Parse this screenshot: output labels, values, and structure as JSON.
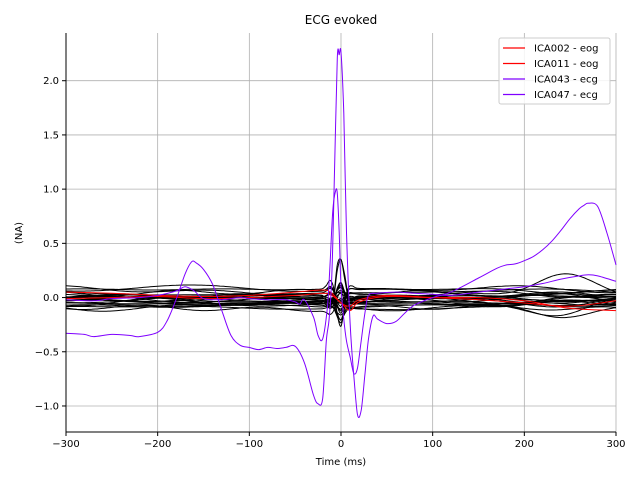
{
  "chart_data": {
    "type": "line",
    "title": "ECG evoked",
    "xlabel": "Time (ms)",
    "ylabel": "(NA)",
    "xlim": [
      -300,
      300
    ],
    "ylim": [
      -1.24,
      2.44
    ],
    "grid": true,
    "legend_position": "top-right",
    "xticks": [
      -300,
      -200,
      -100,
      0,
      100,
      200,
      300
    ],
    "yticks": [
      -1.0,
      -0.5,
      0.0,
      0.5,
      1.0,
      1.5,
      2.0
    ],
    "xtick_labels": [
      "−300",
      "−200",
      "−100",
      "0",
      "100",
      "200",
      "300"
    ],
    "ytick_labels": [
      "−1.0",
      "−0.5",
      "0.0",
      "0.5",
      "1.0",
      "1.5",
      "2.0"
    ],
    "legend": [
      {
        "label": "ICA002 - eog",
        "color": "#ff0000"
      },
      {
        "label": "ICA011 - eog",
        "color": "#ff0000"
      },
      {
        "label": "ICA043 - ecg",
        "color": "#7f00ff"
      },
      {
        "label": "ICA047 - ecg",
        "color": "#7f00ff"
      }
    ],
    "series": [
      {
        "name": "ICA002 - eog",
        "color": "#ff0000",
        "width": 1.0,
        "x": [
          -300,
          -250,
          -200,
          -150,
          -100,
          -50,
          -20,
          -10,
          0,
          10,
          20,
          50,
          100,
          150,
          200,
          250,
          300
        ],
        "y": [
          0.05,
          0.04,
          0.02,
          0.01,
          0.02,
          0.05,
          0.07,
          0.04,
          -0.05,
          -0.08,
          -0.02,
          0.02,
          0.0,
          -0.02,
          -0.05,
          -0.08,
          -0.03
        ]
      },
      {
        "name": "ICA011 - eog",
        "color": "#ff0000",
        "width": 1.0,
        "x": [
          -300,
          -250,
          -200,
          -150,
          -100,
          -50,
          -20,
          -10,
          0,
          10,
          20,
          50,
          100,
          150,
          200,
          250,
          300
        ],
        "y": [
          -0.01,
          0.0,
          0.01,
          -0.01,
          0.0,
          0.02,
          0.04,
          0.02,
          -0.05,
          -0.12,
          -0.04,
          0.01,
          0.0,
          0.0,
          -0.03,
          -0.1,
          -0.12
        ]
      },
      {
        "name": "ICA043 - ecg",
        "color": "#7f00ff",
        "width": 1.0,
        "x": [
          -300,
          -280,
          -270,
          -250,
          -230,
          -220,
          -200,
          -190,
          -180,
          -170,
          -163,
          -158,
          -150,
          -140,
          -130,
          -120,
          -110,
          -100,
          -90,
          -80,
          -70,
          -60,
          -50,
          -40,
          -30,
          -25,
          -20,
          -16,
          -13,
          -10,
          -7,
          -4,
          -2,
          0,
          3,
          6,
          10,
          14,
          18,
          22,
          26,
          30,
          35,
          40,
          50,
          60,
          70,
          80,
          100,
          120,
          150,
          170,
          180,
          190,
          200,
          210,
          220,
          230,
          240,
          250,
          260,
          265,
          270,
          280,
          290,
          300
        ],
        "y": [
          -0.33,
          -0.34,
          -0.36,
          -0.34,
          -0.35,
          -0.36,
          -0.32,
          -0.22,
          -0.02,
          0.22,
          0.33,
          0.32,
          0.26,
          0.12,
          -0.12,
          -0.35,
          -0.44,
          -0.46,
          -0.48,
          -0.46,
          -0.47,
          -0.46,
          -0.45,
          -0.6,
          -0.9,
          -0.98,
          -0.93,
          -0.4,
          -0.2,
          0.2,
          1.2,
          2.21,
          2.24,
          2.26,
          1.7,
          0.6,
          -0.25,
          -0.72,
          -1.08,
          -1.04,
          -0.72,
          -0.38,
          -0.17,
          -0.2,
          -0.24,
          -0.22,
          -0.14,
          -0.07,
          0.0,
          0.05,
          0.18,
          0.27,
          0.3,
          0.31,
          0.34,
          0.38,
          0.44,
          0.52,
          0.62,
          0.73,
          0.82,
          0.85,
          0.87,
          0.84,
          0.6,
          0.3
        ]
      },
      {
        "name": "ICA047 - ecg",
        "color": "#7f00ff",
        "width": 1.0,
        "x": [
          -300,
          -270,
          -250,
          -220,
          -200,
          -180,
          -170,
          -160,
          -150,
          -130,
          -110,
          -100,
          -80,
          -60,
          -50,
          -45,
          -40,
          -30,
          -25,
          -20,
          -15,
          -12,
          -9,
          -6,
          -4,
          -2,
          0,
          3,
          6,
          10,
          14,
          18,
          22,
          26,
          30,
          40,
          60,
          80,
          100,
          120,
          150,
          180,
          200,
          220,
          240,
          260,
          270,
          280,
          300
        ],
        "y": [
          -0.02,
          -0.03,
          -0.01,
          0.0,
          0.02,
          0.06,
          0.1,
          0.06,
          -0.01,
          -0.02,
          0.0,
          -0.01,
          -0.02,
          -0.02,
          -0.04,
          -0.06,
          -0.02,
          -0.18,
          -0.35,
          -0.38,
          -0.1,
          0.3,
          0.8,
          0.98,
          0.96,
          0.6,
          0.1,
          -0.2,
          -0.4,
          -0.55,
          -0.7,
          -0.65,
          -0.4,
          -0.15,
          0.02,
          0.04,
          0.05,
          0.04,
          0.03,
          0.02,
          0.05,
          0.08,
          0.1,
          0.13,
          0.17,
          0.2,
          0.21,
          0.2,
          0.15
        ]
      }
    ]
  }
}
